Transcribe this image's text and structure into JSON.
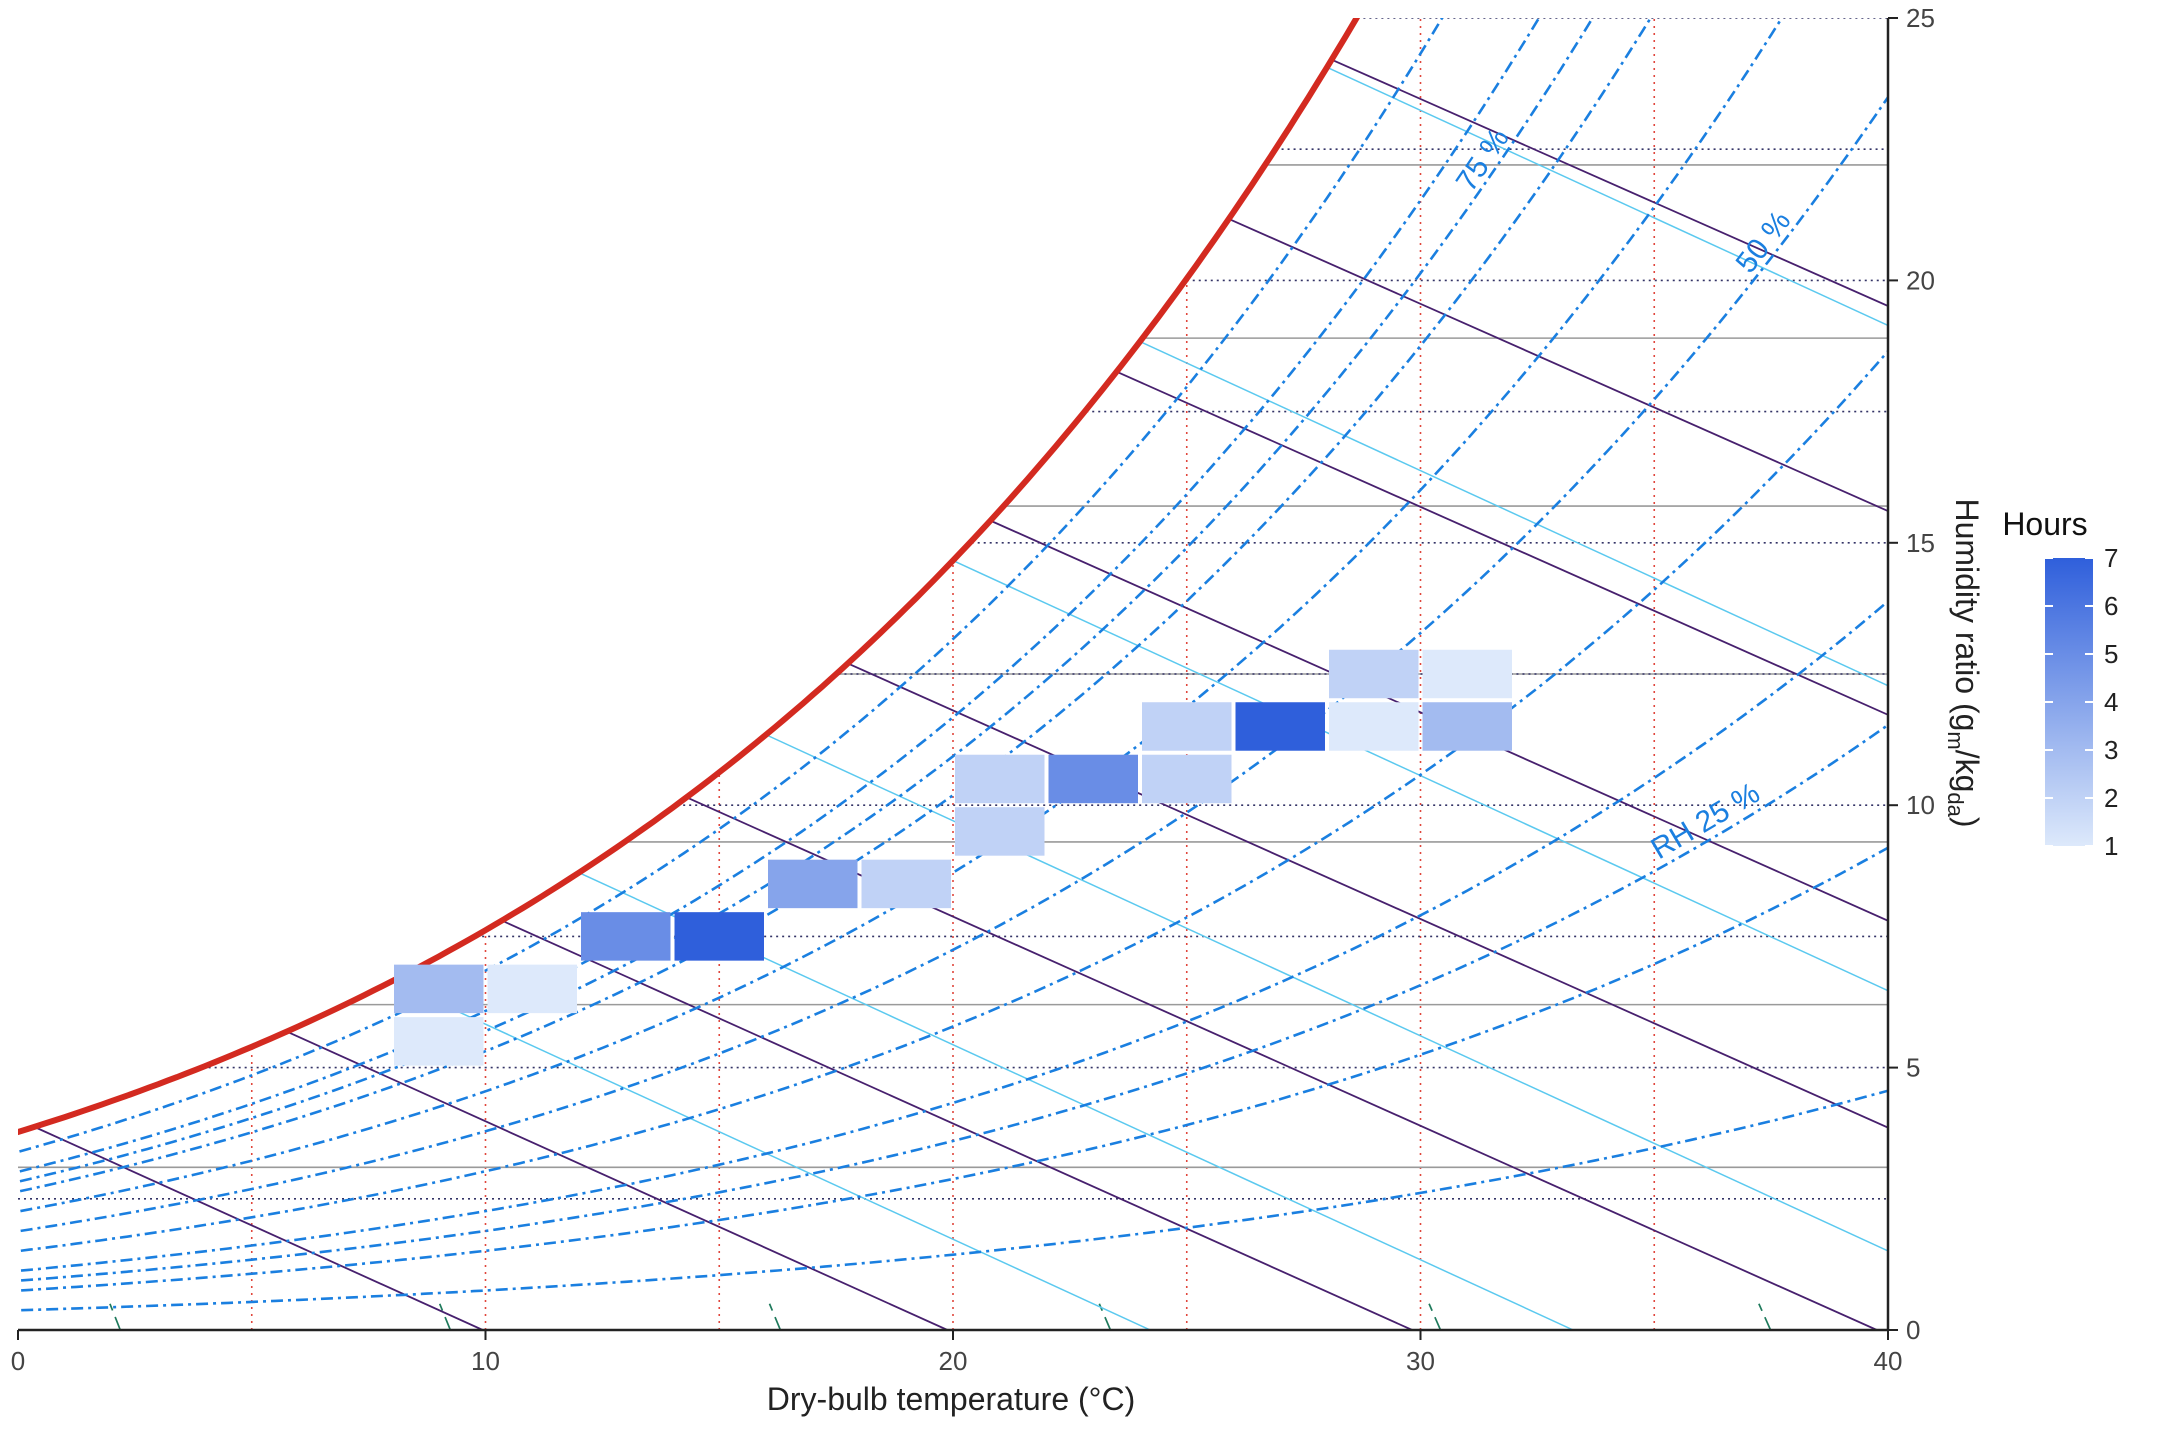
{
  "chart_data": {
    "type": "heatmap",
    "subtype": "psychrometric chart",
    "xlabel": "Dry-bulb temperature (°C)",
    "ylabel": {
      "main": "Humidity ratio (g",
      "sub1": "m",
      "mid": "/kg",
      "sub2": "da",
      "end": ")"
    },
    "xlim": [
      0,
      40
    ],
    "ylim": [
      0,
      25
    ],
    "x_ticks": [
      0,
      10,
      20,
      30,
      40
    ],
    "y_ticks": [
      0,
      5,
      10,
      15,
      20,
      25
    ],
    "y_axis_position": "right",
    "grid": false,
    "colors": {
      "saturation": "#d32a20",
      "rh": "#1a7fe0",
      "enthalpy": "#47206e",
      "wetbulb": "#5bc9ef",
      "volume": "#1f7a5c",
      "vgrid": "#e0463c",
      "hgrid": "#333366",
      "hgrid_solid": "#9a9a9a",
      "fill_low": "#dde9fb",
      "fill_high": "#2f5fdb"
    },
    "rh_levels": [
      10,
      20,
      25,
      30,
      40,
      50,
      60,
      70,
      75,
      80,
      90
    ],
    "rh_labels": [
      {
        "text": "RH 25 %",
        "rh": 25,
        "t": 36.2
      },
      {
        "text": "50 %",
        "rh": 50,
        "t": 37.5
      },
      {
        "text": "75 %",
        "rh": 75,
        "t": 31.5
      }
    ],
    "enthalpy_lines": [
      10,
      20,
      30,
      40,
      50,
      60,
      70,
      80,
      90
    ],
    "wetbulb_lines": [
      8,
      12,
      16,
      20,
      24,
      28,
      32
    ],
    "volume_lines": [
      0.78,
      0.8,
      0.82,
      0.84,
      0.86,
      0.88,
      0.9,
      0.92
    ],
    "dry_bulb_guides": [
      5,
      10,
      15,
      20,
      25,
      30,
      35
    ],
    "humidity_guides_dotted": [
      2.5,
      5,
      7.5,
      10,
      12.5,
      15,
      17.5,
      20,
      22.5,
      25
    ],
    "humidity_guides_solid": [
      3.1,
      6.2,
      9.3,
      12.5,
      15.7,
      18.9,
      22.2
    ],
    "cells": [
      {
        "t": [
          8,
          10
        ],
        "w": [
          5,
          6
        ],
        "hours": 1
      },
      {
        "t": [
          8,
          10
        ],
        "w": [
          6,
          7
        ],
        "hours": 3
      },
      {
        "t": [
          10,
          12
        ],
        "w": [
          6,
          7
        ],
        "hours": 1
      },
      {
        "t": [
          12,
          14
        ],
        "w": [
          7,
          8
        ],
        "hours": 5
      },
      {
        "t": [
          14,
          16
        ],
        "w": [
          7,
          8
        ],
        "hours": 7
      },
      {
        "t": [
          16,
          18
        ],
        "w": [
          8,
          9
        ],
        "hours": 4
      },
      {
        "t": [
          18,
          20
        ],
        "w": [
          8,
          9
        ],
        "hours": 2
      },
      {
        "t": [
          20,
          22
        ],
        "w": [
          9,
          10
        ],
        "hours": 2
      },
      {
        "t": [
          20,
          22
        ],
        "w": [
          10,
          11
        ],
        "hours": 2
      },
      {
        "t": [
          22,
          24
        ],
        "w": [
          10,
          11
        ],
        "hours": 5
      },
      {
        "t": [
          24,
          26
        ],
        "w": [
          10,
          11
        ],
        "hours": 2
      },
      {
        "t": [
          24,
          26
        ],
        "w": [
          11,
          12
        ],
        "hours": 2
      },
      {
        "t": [
          26,
          28
        ],
        "w": [
          11,
          12
        ],
        "hours": 7
      },
      {
        "t": [
          28,
          30
        ],
        "w": [
          11,
          12
        ],
        "hours": 1
      },
      {
        "t": [
          28,
          30
        ],
        "w": [
          12,
          13
        ],
        "hours": 2
      },
      {
        "t": [
          30,
          32
        ],
        "w": [
          11,
          12
        ],
        "hours": 3
      },
      {
        "t": [
          30,
          32
        ],
        "w": [
          12,
          13
        ],
        "hours": 1
      }
    ],
    "legend": {
      "title": "Hours",
      "min": 1,
      "max": 7,
      "ticks": [
        1,
        2,
        3,
        4,
        5,
        6,
        7
      ],
      "position": "right"
    }
  }
}
